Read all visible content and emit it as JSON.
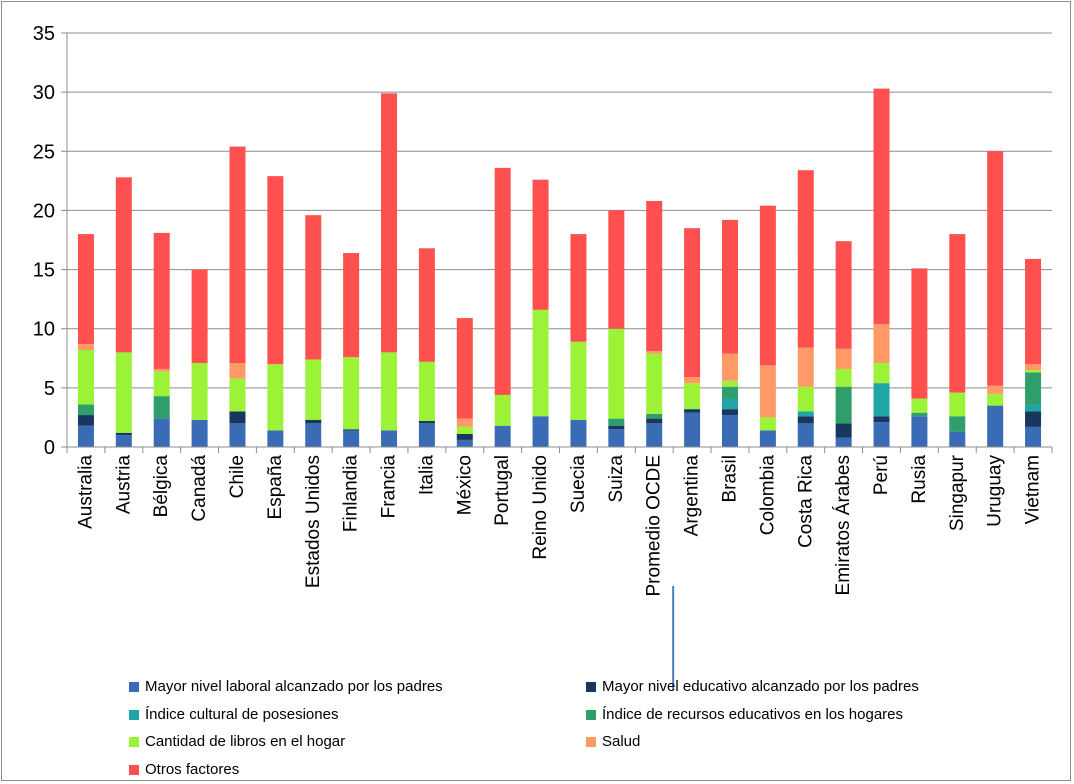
{
  "chart_data": {
    "type": "bar",
    "stacked": true,
    "yaxis": {
      "min": 0,
      "max": 35,
      "ticks": [
        0,
        5,
        10,
        15,
        20,
        25,
        30,
        35
      ],
      "ylim": [
        0,
        35
      ]
    },
    "grid": "horizontal",
    "legend_position": "bottom",
    "separator_after_category": "Promedio OCDE",
    "categories": [
      "Australia",
      "Austria",
      "Bélgica",
      "Canadá",
      "Chile",
      "España",
      "Estados Unidos",
      "Finlandia",
      "Francia",
      "Italia",
      "México",
      "Portugal",
      "Reino Unido",
      "Suecia",
      "Suiza",
      "Promedio OCDE",
      "Argentina",
      "Brasil",
      "Colombia",
      "Costa Rica",
      "Emiratos Árabes",
      "Perú",
      "Rusia",
      "Singapur",
      "Uruguay",
      "Vietnam"
    ],
    "series": [
      {
        "name": "Mayor nivel laboral alcanzado por los padres",
        "color": "#3A6BB5",
        "values": [
          1.8,
          1.0,
          2.4,
          2.3,
          2.0,
          1.4,
          2.0,
          1.4,
          1.4,
          2.0,
          0.6,
          1.8,
          2.6,
          2.3,
          1.5,
          2.0,
          2.9,
          2.7,
          1.4,
          2.0,
          0.8,
          2.1,
          2.6,
          1.3,
          3.5,
          1.7
        ]
      },
      {
        "name": "Mayor nivel educativo alcanzado por los padres",
        "color": "#17375E",
        "values": [
          0.9,
          0.2,
          0.0,
          0.0,
          1.0,
          0.0,
          0.3,
          0.1,
          0.0,
          0.2,
          0.5,
          0.0,
          0.0,
          0.0,
          0.3,
          0.4,
          0.3,
          0.5,
          0.0,
          0.6,
          1.2,
          0.5,
          0.0,
          0.0,
          0.0,
          1.3
        ]
      },
      {
        "name": "Índice cultural de posesiones",
        "color": "#1FA5A5",
        "values": [
          0.0,
          0.0,
          0.0,
          0.0,
          0.0,
          0.0,
          0.0,
          0.0,
          0.0,
          0.0,
          0.0,
          0.0,
          0.0,
          0.0,
          0.0,
          0.0,
          0.0,
          0.9,
          0.0,
          0.4,
          0.0,
          2.8,
          0.0,
          0.0,
          0.0,
          0.6
        ]
      },
      {
        "name": "Índice de recursos educativos en los hogares",
        "color": "#2E9E6B",
        "values": [
          0.9,
          0.0,
          1.9,
          0.0,
          0.0,
          0.0,
          0.0,
          0.0,
          0.0,
          0.0,
          0.0,
          0.0,
          0.0,
          0.0,
          0.6,
          0.4,
          0.0,
          1.0,
          0.0,
          0.0,
          3.1,
          0.0,
          0.3,
          1.3,
          0.0,
          2.7
        ]
      },
      {
        "name": "Cantidad de libros en el hogar",
        "color": "#9BF236",
        "values": [
          4.6,
          6.8,
          2.1,
          4.8,
          2.8,
          5.6,
          5.1,
          6.1,
          6.6,
          5.0,
          0.6,
          2.6,
          9.0,
          6.6,
          7.6,
          5.1,
          2.2,
          0.5,
          1.1,
          2.1,
          1.5,
          1.7,
          1.2,
          2.0,
          1.0,
          0.2
        ]
      },
      {
        "name": "Salud",
        "color": "#FF9966",
        "values": [
          0.5,
          0.0,
          0.2,
          0.0,
          1.3,
          0.0,
          0.0,
          0.0,
          0.0,
          0.0,
          0.7,
          0.0,
          0.0,
          0.0,
          0.0,
          0.2,
          0.5,
          2.3,
          4.4,
          3.3,
          1.7,
          3.3,
          0.0,
          0.0,
          0.7,
          0.5
        ]
      },
      {
        "name": "Otros factores",
        "color": "#FF5050",
        "values": [
          9.3,
          14.8,
          11.5,
          7.9,
          18.3,
          15.9,
          12.2,
          8.8,
          21.9,
          9.6,
          8.5,
          19.2,
          11.0,
          9.1,
          10.0,
          12.7,
          12.6,
          11.3,
          13.5,
          15.0,
          9.1,
          19.9,
          11.0,
          13.4,
          19.8,
          8.9
        ]
      }
    ]
  }
}
